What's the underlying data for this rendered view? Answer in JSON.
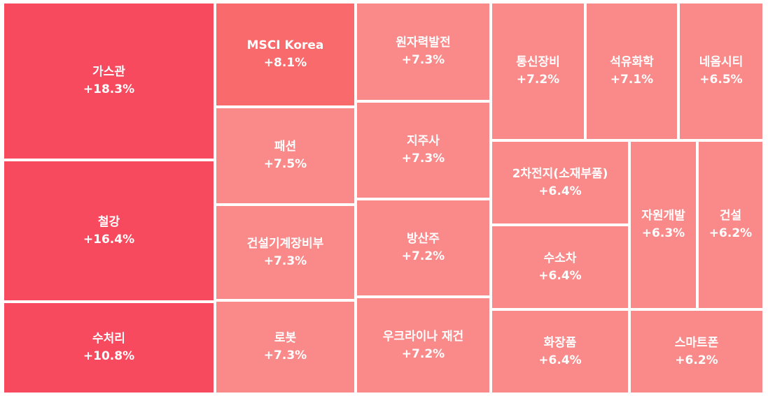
{
  "chart_data": {
    "type": "treemap",
    "colors": {
      "strong": "#f74a5e",
      "medium": "#f96a6c",
      "light": "#f98a89"
    },
    "items": [
      {
        "label": "가스관",
        "value": "+18.3%",
        "change": 18.3,
        "tone": "strong"
      },
      {
        "label": "철강",
        "value": "+16.4%",
        "change": 16.4,
        "tone": "strong"
      },
      {
        "label": "수처리",
        "value": "+10.8%",
        "change": 10.8,
        "tone": "strong"
      },
      {
        "label": "MSCI Korea",
        "value": "+8.1%",
        "change": 8.1,
        "tone": "medium"
      },
      {
        "label": "패션",
        "value": "+7.5%",
        "change": 7.5,
        "tone": "light"
      },
      {
        "label": "건설기계장비부",
        "value": "+7.3%",
        "change": 7.3,
        "tone": "light"
      },
      {
        "label": "로봇",
        "value": "+7.3%",
        "change": 7.3,
        "tone": "light"
      },
      {
        "label": "원자력발전",
        "value": "+7.3%",
        "change": 7.3,
        "tone": "light"
      },
      {
        "label": "지주사",
        "value": "+7.3%",
        "change": 7.3,
        "tone": "light"
      },
      {
        "label": "방산주",
        "value": "+7.2%",
        "change": 7.2,
        "tone": "light"
      },
      {
        "label": "우크라이나 재건",
        "value": "+7.2%",
        "change": 7.2,
        "tone": "light"
      },
      {
        "label": "통신장비",
        "value": "+7.2%",
        "change": 7.2,
        "tone": "light"
      },
      {
        "label": "석유화학",
        "value": "+7.1%",
        "change": 7.1,
        "tone": "light"
      },
      {
        "label": "네옴시티",
        "value": "+6.5%",
        "change": 6.5,
        "tone": "light"
      },
      {
        "label": "2차전지(소재부품)",
        "value": "+6.4%",
        "change": 6.4,
        "tone": "light"
      },
      {
        "label": "수소차",
        "value": "+6.4%",
        "change": 6.4,
        "tone": "light"
      },
      {
        "label": "화장품",
        "value": "+6.4%",
        "change": 6.4,
        "tone": "light"
      },
      {
        "label": "자원개발",
        "value": "+6.3%",
        "change": 6.3,
        "tone": "light"
      },
      {
        "label": "건설",
        "value": "+6.2%",
        "change": 6.2,
        "tone": "light"
      },
      {
        "label": "스마트폰",
        "value": "+6.2%",
        "change": 6.2,
        "tone": "light"
      }
    ]
  }
}
